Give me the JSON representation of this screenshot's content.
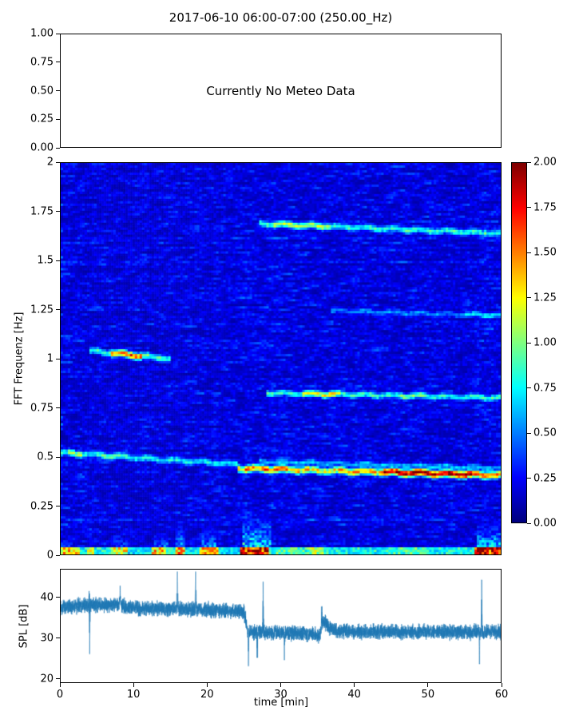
{
  "chart_data": [
    {
      "id": "meteo",
      "type": "empty",
      "title": "2017-06-10 06:00-07:00 (250.00_Hz)",
      "annotation": "Currently No Meteo Data",
      "ylim": [
        0,
        1
      ],
      "yticks": [
        0,
        0.25,
        0.5,
        0.75,
        1
      ],
      "ytick_labels": [
        "0.00",
        "0.25",
        "0.50",
        "0.75",
        "1.00"
      ]
    },
    {
      "id": "spectrogram",
      "type": "heatmap",
      "ylabel": "FFT Frequenz [Hz]",
      "xlim": [
        0,
        60
      ],
      "ylim": [
        0,
        2
      ],
      "yticks": [
        0,
        0.25,
        0.5,
        0.75,
        1,
        1.25,
        1.5,
        1.75,
        2
      ],
      "ytick_labels": [
        "0",
        "0.25",
        "0.5",
        "0.75",
        "1",
        "1.25",
        "1.5",
        "1.75",
        "2"
      ],
      "colormap": "jet",
      "vmin": 0,
      "vmax": 2,
      "colorbar": {
        "ticks": [
          0,
          0.25,
          0.5,
          0.75,
          1,
          1.25,
          1.5,
          1.75,
          2
        ],
        "tick_labels": [
          "0.00",
          "0.25",
          "0.50",
          "0.75",
          "1.00",
          "1.25",
          "1.50",
          "1.75",
          "2.00"
        ]
      },
      "seed": 42,
      "noise_floor": 0.07,
      "noise_range": 0.45,
      "hlines": [
        {
          "t0": 0,
          "t1": 24,
          "f0": 0.52,
          "f1": 0.46,
          "w": 0.013,
          "base": 0.75,
          "bright": [
            [
              1,
              3,
              1.05
            ],
            [
              5,
              9,
              0.95
            ]
          ]
        },
        {
          "t0": 24,
          "t1": 60,
          "f0": 0.44,
          "f1": 0.405,
          "w": 0.014,
          "base": 1.35,
          "bright": [
            [
              25,
              31,
              1.55
            ],
            [
              44,
              56,
              1.95
            ],
            [
              56,
              60,
              1.7
            ]
          ]
        },
        {
          "t0": 27,
          "t1": 60,
          "f0": 0.475,
          "f1": 0.44,
          "w": 0.011,
          "base": 0.65,
          "bright": []
        },
        {
          "t0": 4,
          "t1": 15,
          "f0": 1.04,
          "f1": 1.0,
          "w": 0.013,
          "base": 0.9,
          "bright": [
            [
              7,
              11,
              1.6
            ]
          ]
        },
        {
          "t0": 27,
          "t1": 60,
          "f0": 1.69,
          "f1": 1.64,
          "w": 0.013,
          "base": 0.85,
          "bright": [
            [
              29,
              37,
              1.1
            ]
          ]
        },
        {
          "t0": 28,
          "t1": 60,
          "f0": 0.825,
          "f1": 0.8,
          "w": 0.012,
          "base": 0.85,
          "bright": [
            [
              33,
              38,
              1.3
            ],
            [
              46,
              50,
              1.0
            ]
          ]
        },
        {
          "t0": 37,
          "t1": 60,
          "f0": 1.245,
          "f1": 1.22,
          "w": 0.011,
          "base": 0.55,
          "bright": [
            [
              55,
              60,
              0.75
            ]
          ]
        }
      ],
      "bottom_band": {
        "fmax": 0.035,
        "segments": [
          [
            0,
            2.5,
            1.5
          ],
          [
            2.5,
            3.5,
            0.9
          ],
          [
            3.5,
            4.5,
            1.3
          ],
          [
            4.5,
            7,
            0.9
          ],
          [
            7,
            9,
            1.4
          ],
          [
            9,
            12.5,
            0.8
          ],
          [
            12.5,
            14.5,
            1.5
          ],
          [
            14.5,
            15.5,
            0.9
          ],
          [
            15.5,
            17,
            1.6
          ],
          [
            17,
            19,
            0.8
          ],
          [
            19,
            21.5,
            1.5
          ],
          [
            21.5,
            24.5,
            0.8
          ],
          [
            24.5,
            28.5,
            2.0
          ],
          [
            28.5,
            34,
            1.0
          ],
          [
            34,
            36,
            1.2
          ],
          [
            36,
            45,
            0.9
          ],
          [
            45,
            50,
            1.0
          ],
          [
            50,
            56.5,
            0.9
          ],
          [
            56.5,
            60,
            2.0
          ]
        ]
      },
      "vstripes": [
        [
          0,
          1.5,
          0.13,
          0.9
        ],
        [
          3.7,
          4.4,
          0.1,
          0.8
        ],
        [
          7.4,
          9.0,
          0.16,
          0.9
        ],
        [
          12.8,
          14.6,
          0.2,
          0.9
        ],
        [
          15.6,
          16.8,
          0.26,
          1.1
        ],
        [
          19.4,
          21.2,
          0.24,
          1.0
        ],
        [
          24.8,
          28.6,
          0.32,
          1.3
        ],
        [
          34.5,
          36.2,
          0.12,
          0.8
        ],
        [
          56.8,
          60,
          0.26,
          1.2
        ]
      ]
    },
    {
      "id": "spl",
      "type": "line",
      "ylabel": "SPL [dB]",
      "xlabel": "time [min]",
      "color": "#1f77b4",
      "xlim": [
        0,
        60
      ],
      "ylim": [
        19,
        47
      ],
      "yticks": [
        20,
        30,
        40
      ],
      "ytick_labels": [
        "20",
        "30",
        "40"
      ],
      "xticks": [
        0,
        10,
        20,
        30,
        40,
        50,
        60
      ],
      "xtick_labels": [
        "0",
        "10",
        "20",
        "30",
        "40",
        "50",
        "60"
      ],
      "seed": 7,
      "noise_amp": 1.9,
      "baseline": [
        [
          0,
          37.5
        ],
        [
          2,
          38
        ],
        [
          8,
          38.5
        ],
        [
          9,
          37.5
        ],
        [
          20,
          37
        ],
        [
          25,
          36.5
        ],
        [
          25.5,
          31.5
        ],
        [
          27,
          31.5
        ],
        [
          34,
          31
        ],
        [
          35.3,
          30.5
        ],
        [
          35.8,
          34.5
        ],
        [
          37,
          32
        ],
        [
          40,
          31.5
        ],
        [
          60,
          31.5
        ]
      ],
      "spikes": [
        [
          3.9,
          45
        ],
        [
          8.1,
          43
        ],
        [
          15.9,
          46.5
        ],
        [
          18.4,
          46.5
        ],
        [
          27.6,
          44
        ],
        [
          35.6,
          39.5
        ],
        [
          57.4,
          44.5
        ]
      ],
      "dips": [
        [
          3.95,
          26
        ],
        [
          25.6,
          23
        ],
        [
          26.8,
          22.5
        ],
        [
          30.5,
          24.5
        ],
        [
          57.1,
          23.5
        ]
      ]
    }
  ]
}
